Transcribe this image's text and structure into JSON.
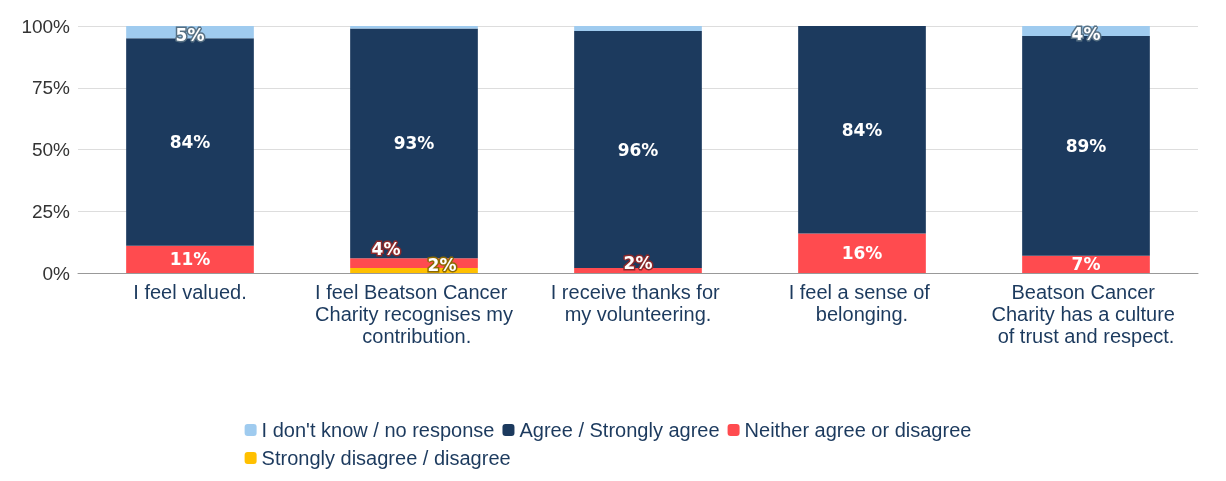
{
  "chart_data": {
    "type": "bar",
    "stacked": true,
    "categories": [
      "I feel valued.",
      "I feel Beatson Cancer Charity recognises my contribution.",
      "I receive thanks for my volunteering.",
      "I feel a sense of belonging.",
      "Beatson Cancer Charity has a culture of trust and respect."
    ],
    "series": [
      {
        "name": "Strongly disagree / disagree",
        "color": "#ffc000",
        "values": [
          0,
          2,
          0,
          0,
          0
        ],
        "value_labels": [
          null,
          "2%",
          null,
          null,
          null
        ]
      },
      {
        "name": "Neither agree or disagree",
        "color": "#ff4b4f",
        "values": [
          11,
          4,
          2,
          16,
          7
        ],
        "value_labels": [
          "11%",
          "4%",
          "2%",
          "16%",
          "7%"
        ]
      },
      {
        "name": "Agree / Strongly agree",
        "color": "#1c3a5e",
        "values": [
          84,
          93,
          96,
          84,
          89
        ],
        "value_labels": [
          "84%",
          "93%",
          "96%",
          "84%",
          "89%"
        ]
      },
      {
        "name": "I don't know / no response",
        "color": "#9fcbef",
        "values": [
          5,
          1,
          2,
          0,
          4
        ],
        "value_labels": [
          "5%",
          null,
          null,
          null,
          "4%"
        ]
      }
    ],
    "ylim": [
      0,
      100
    ],
    "yticks": [
      {
        "value": 0,
        "label": "0%"
      },
      {
        "value": 25,
        "label": "25%"
      },
      {
        "value": 50,
        "label": "50%"
      },
      {
        "value": 75,
        "label": "75%"
      },
      {
        "value": 100,
        "label": "100%"
      }
    ],
    "grid": "y",
    "legend": "bottom"
  }
}
